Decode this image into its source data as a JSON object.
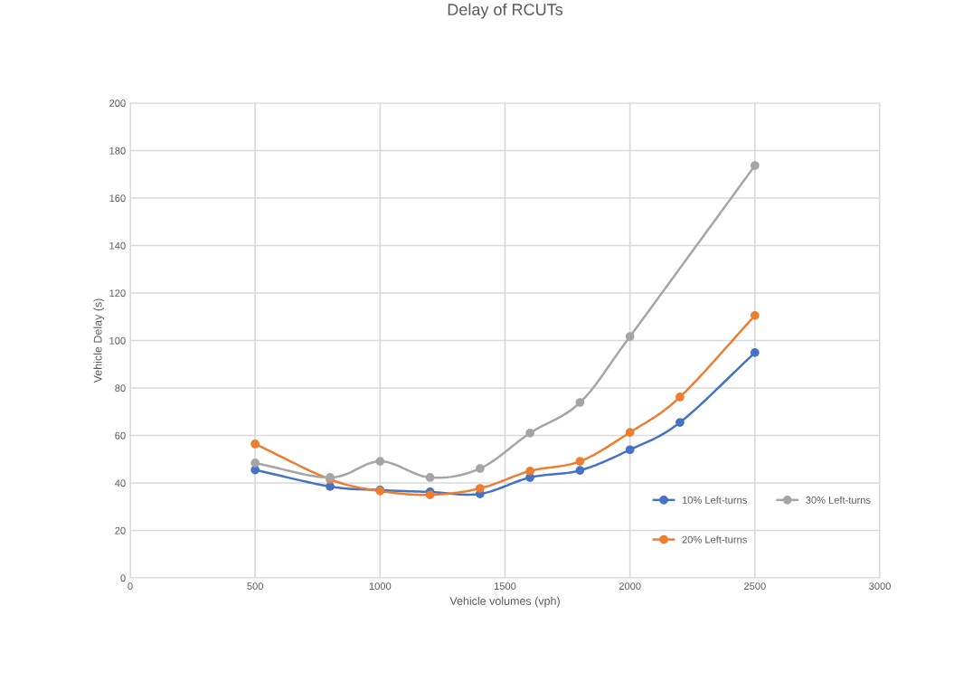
{
  "chart_data": {
    "type": "line",
    "title": "Delay of RCUTs",
    "xlabel": "Vehicle volumes (vph)",
    "ylabel": "Vehicle Delay (s)",
    "xlim": [
      0,
      3000
    ],
    "xticks": [
      0,
      500,
      1000,
      1500,
      2000,
      2500,
      3000
    ],
    "ylim": [
      0,
      200
    ],
    "yticks": [
      0,
      20,
      40,
      60,
      80,
      100,
      120,
      140,
      160,
      180,
      200
    ],
    "grid": true,
    "legend": "bottom right",
    "marker": "circle",
    "line_style": "solid",
    "series": [
      {
        "name": "10% Left-turns",
        "color": "#4472c4",
        "x": [
          500,
          800,
          1000,
          1200,
          1400,
          1600,
          1800,
          2000,
          2200,
          2500
        ],
        "values": [
          45.5,
          38.5,
          37,
          36.2,
          35.4,
          42.3,
          45.3,
          54,
          65.5,
          94.9
        ]
      },
      {
        "name": "20% Left-turns",
        "color": "#ed7d31",
        "x": [
          500,
          800,
          1000,
          1200,
          1400,
          1600,
          1800,
          2000,
          2200,
          2500
        ],
        "values": [
          56.4,
          41.5,
          36.6,
          35,
          37.7,
          45,
          49.1,
          61.3,
          76.2,
          110.5
        ]
      },
      {
        "name": "30% Left-turns",
        "color": "#a5a5a5",
        "x": [
          500,
          800,
          1000,
          1200,
          1400,
          1600,
          1800,
          2000,
          2500
        ],
        "values": [
          48.4,
          42.3,
          49.1,
          42.3,
          46.1,
          61,
          73.9,
          101.7,
          173.7
        ]
      }
    ]
  }
}
